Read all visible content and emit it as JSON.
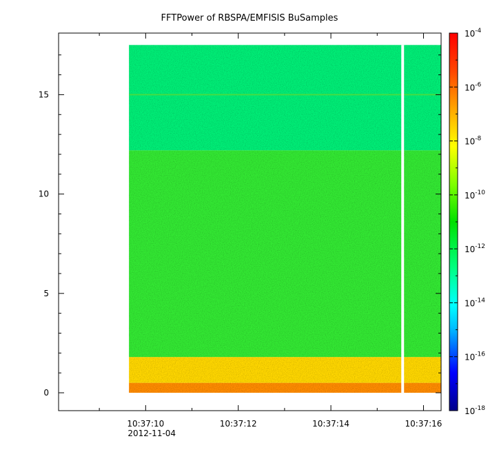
{
  "chart_data": {
    "type": "heatmap",
    "title": "FFTPower of RBSPA/EMFISIS  BuSamples",
    "xlabel": "",
    "ylabel": "",
    "x_axis": {
      "kind": "time",
      "range": [
        "10:37:08.12",
        "10:37:16.38"
      ],
      "tick_labels": [
        "10:37:10",
        "10:37:12",
        "10:37:14",
        "10:37:16"
      ],
      "tick_times_sec": [
        10,
        12,
        14,
        16
      ],
      "date_label": "2012-11-04"
    },
    "y_axis": {
      "range": [
        -0.9,
        18.1
      ],
      "ticks": [
        0,
        5,
        10,
        15
      ],
      "tick_labels": [
        "0",
        "5",
        "10",
        "15"
      ]
    },
    "colorbar": {
      "scale": "log",
      "range": [
        1e-18,
        0.0001
      ],
      "tick_bases": [
        "10",
        "10",
        "10",
        "10",
        "10",
        "10",
        "10",
        "10"
      ],
      "tick_exponents": [
        "-4",
        "-6",
        "-8",
        "-10",
        "-12",
        "-14",
        "-16",
        "-18"
      ],
      "tick_values": [
        -4,
        -6,
        -8,
        -10,
        -12,
        -14,
        -16,
        -18
      ],
      "colormap": [
        "#00008b",
        "#0000ff",
        "#00bfff",
        "#00ffff",
        "#00ff7f",
        "#00e000",
        "#7fff00",
        "#ffff00",
        "#ffa500",
        "#ff4500",
        "#ff0000"
      ]
    },
    "data_coverage": {
      "time_start": "10:37:09.64",
      "time_end": "10:37:16.38",
      "freq_min": 0,
      "freq_max": 17.5,
      "gap_time": "10:37:15.55"
    },
    "bands": [
      {
        "freq_from": 0,
        "freq_to": 0.5,
        "log10_power": -8.2,
        "color": "#ff8c00"
      },
      {
        "freq_from": 0.5,
        "freq_to": 1.8,
        "log10_power": -8.8,
        "color": "#ffd700"
      },
      {
        "freq_from": 1.8,
        "freq_to": 12.2,
        "log10_power": -10.3,
        "color": "#33e833"
      },
      {
        "freq_from": 12.2,
        "freq_to": 17.5,
        "log10_power": -11.7,
        "color": "#00ee77"
      }
    ],
    "lines": [
      {
        "freq": 15.0,
        "log10_power": -10.5,
        "color": "#44dd44"
      }
    ],
    "grid": false
  }
}
